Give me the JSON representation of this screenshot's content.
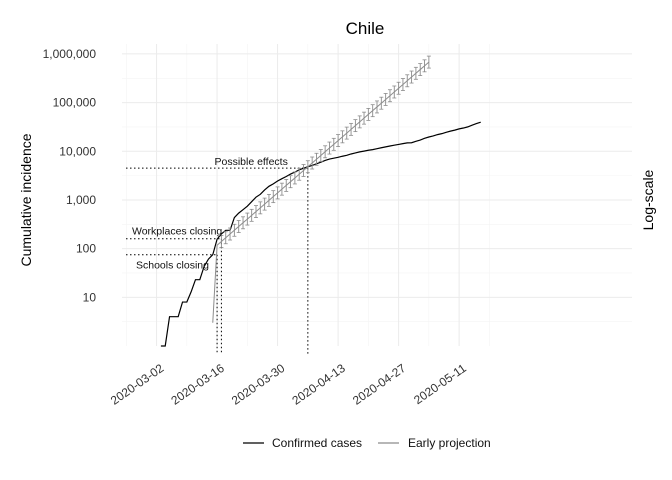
{
  "chart_data": {
    "type": "line",
    "title": "Chile",
    "ylabel": "Cumulative incidence",
    "right_label": "Log-scale",
    "xlabel": "",
    "y_scale": "log10",
    "ylim": [
      1,
      1600000
    ],
    "xlim": [
      "2020-02-23",
      "2020-06-20"
    ],
    "grid": true,
    "legend_position": "bottom",
    "y_ticks": [
      {
        "value": 10,
        "label": "10"
      },
      {
        "value": 100,
        "label": "100"
      },
      {
        "value": 1000,
        "label": "1,000"
      },
      {
        "value": 10000,
        "label": "10,000"
      },
      {
        "value": 100000,
        "label": "100,000"
      },
      {
        "value": 1000000,
        "label": "1,000,000"
      }
    ],
    "x_ticks": [
      "2020-03-02",
      "2020-03-16",
      "2020-03-30",
      "2020-04-13",
      "2020-04-27",
      "2020-05-11"
    ],
    "series": [
      {
        "name": "Confirmed cases",
        "color": "#000000",
        "points": [
          [
            "2020-03-03",
            1
          ],
          [
            "2020-03-04",
            1
          ],
          [
            "2020-03-05",
            4
          ],
          [
            "2020-03-06",
            4
          ],
          [
            "2020-03-07",
            4
          ],
          [
            "2020-03-08",
            8
          ],
          [
            "2020-03-09",
            8
          ],
          [
            "2020-03-10",
            13
          ],
          [
            "2020-03-11",
            23
          ],
          [
            "2020-03-12",
            23
          ],
          [
            "2020-03-13",
            43
          ],
          [
            "2020-03-14",
            61
          ],
          [
            "2020-03-15",
            75
          ],
          [
            "2020-03-16",
            156
          ],
          [
            "2020-03-17",
            201
          ],
          [
            "2020-03-18",
            238
          ],
          [
            "2020-03-19",
            238
          ],
          [
            "2020-03-20",
            434
          ],
          [
            "2020-03-21",
            537
          ],
          [
            "2020-03-22",
            632
          ],
          [
            "2020-03-23",
            746
          ],
          [
            "2020-03-24",
            922
          ],
          [
            "2020-03-25",
            1142
          ],
          [
            "2020-03-26",
            1306
          ],
          [
            "2020-03-27",
            1610
          ],
          [
            "2020-03-28",
            1909
          ],
          [
            "2020-03-29",
            2139
          ],
          [
            "2020-03-30",
            2449
          ],
          [
            "2020-03-31",
            2738
          ],
          [
            "2020-04-01",
            3031
          ],
          [
            "2020-04-02",
            3404
          ],
          [
            "2020-04-03",
            3737
          ],
          [
            "2020-04-04",
            4161
          ],
          [
            "2020-04-05",
            4471
          ],
          [
            "2020-04-06",
            4815
          ],
          [
            "2020-04-07",
            5116
          ],
          [
            "2020-04-08",
            5546
          ],
          [
            "2020-04-09",
            5972
          ],
          [
            "2020-04-10",
            6501
          ],
          [
            "2020-04-11",
            6927
          ],
          [
            "2020-04-12",
            7213
          ],
          [
            "2020-04-13",
            7525
          ],
          [
            "2020-04-14",
            7917
          ],
          [
            "2020-04-15",
            8273
          ],
          [
            "2020-04-16",
            8807
          ],
          [
            "2020-04-17",
            9252
          ],
          [
            "2020-04-18",
            9730
          ],
          [
            "2020-04-19",
            10088
          ],
          [
            "2020-04-20",
            10507
          ],
          [
            "2020-04-21",
            10832
          ],
          [
            "2020-04-22",
            11296
          ],
          [
            "2020-04-23",
            11812
          ],
          [
            "2020-04-24",
            12306
          ],
          [
            "2020-04-25",
            12858
          ],
          [
            "2020-04-26",
            13331
          ],
          [
            "2020-04-27",
            13813
          ],
          [
            "2020-04-28",
            14365
          ],
          [
            "2020-04-29",
            14885
          ],
          [
            "2020-04-30",
            15000
          ],
          [
            "2020-05-01",
            16023
          ],
          [
            "2020-05-02",
            17008
          ],
          [
            "2020-05-03",
            18435
          ],
          [
            "2020-05-04",
            19663
          ],
          [
            "2020-05-05",
            20643
          ],
          [
            "2020-05-06",
            22016
          ],
          [
            "2020-05-07",
            23048
          ],
          [
            "2020-05-08",
            24581
          ],
          [
            "2020-05-09",
            25972
          ],
          [
            "2020-05-10",
            27219
          ],
          [
            "2020-05-11",
            28866
          ],
          [
            "2020-05-12",
            30063
          ],
          [
            "2020-05-13",
            31721
          ],
          [
            "2020-05-14",
            34381
          ],
          [
            "2020-05-15",
            37040
          ],
          [
            "2020-05-16",
            39542
          ]
        ]
      },
      {
        "name": "Early projection",
        "color": "#8c8c8c",
        "start": "2020-03-15",
        "end": "2020-05-04",
        "start_value": 3,
        "anchor": [
          "2020-04-06",
          4815
        ],
        "end_value": 680000
      }
    ],
    "annotations": [
      {
        "text": "Workplaces closing",
        "date": "2020-03-17",
        "value": 160
      },
      {
        "text": "Schools closing",
        "date": "2020-03-16",
        "value": 75
      },
      {
        "text": "Possible effects",
        "date": "2020-04-06",
        "value": 4500
      }
    ]
  }
}
